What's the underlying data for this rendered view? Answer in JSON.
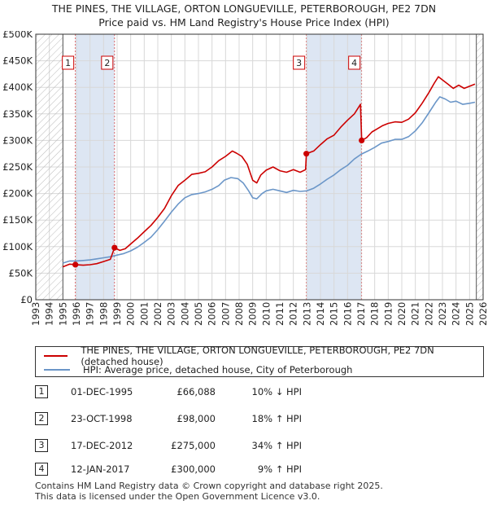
{
  "title": {
    "line1": "THE PINES, THE VILLAGE, ORTON LONGUEVILLE, PETERBOROUGH, PE2 7DN",
    "line2": "Price paid vs. HM Land Registry's House Price Index (HPI)"
  },
  "colors": {
    "property": "#cc0000",
    "hpi": "#6b96c8",
    "grid": "#d8d8d8",
    "band": "#dde6f3",
    "hatch": "#bbbbbb"
  },
  "legend": {
    "property": "THE PINES, THE VILLAGE, ORTON LONGUEVILLE, PETERBOROUGH, PE2 7DN (detached house)",
    "hpi": "HPI: Average price, detached house, City of Peterborough"
  },
  "chart_data": {
    "type": "line",
    "title": "Price paid vs. HM Land Registry's House Price Index (HPI)",
    "xlabel": "",
    "ylabel": "",
    "xlim": [
      1993,
      2026
    ],
    "ylim": [
      0,
      500000
    ],
    "x_ticks": [
      "1993",
      "1994",
      "1995",
      "1996",
      "1997",
      "1998",
      "1999",
      "2000",
      "2001",
      "2002",
      "2003",
      "2004",
      "2005",
      "2006",
      "2007",
      "2008",
      "2009",
      "2010",
      "2011",
      "2012",
      "2013",
      "2014",
      "2015",
      "2016",
      "2017",
      "2018",
      "2019",
      "2020",
      "2021",
      "2022",
      "2023",
      "2024",
      "2025",
      "2026"
    ],
    "y_ticks": [
      {
        "value": 0,
        "label": "£0"
      },
      {
        "value": 50000,
        "label": "£50K"
      },
      {
        "value": 100000,
        "label": "£100K"
      },
      {
        "value": 150000,
        "label": "£150K"
      },
      {
        "value": 200000,
        "label": "£200K"
      },
      {
        "value": 250000,
        "label": "£250K"
      },
      {
        "value": 300000,
        "label": "£300K"
      },
      {
        "value": 350000,
        "label": "£350K"
      },
      {
        "value": 400000,
        "label": "£400K"
      },
      {
        "value": 450000,
        "label": "£450K"
      },
      {
        "value": 500000,
        "label": "£500K"
      }
    ],
    "hatched_before": 1995.0,
    "hatched_after": 2025.5,
    "shaded_bands": [
      [
        1995.92,
        1998.81
      ],
      [
        2012.96,
        2017.04
      ]
    ],
    "sales": [
      {
        "label": "1",
        "x": 1995.92,
        "y": 66088
      },
      {
        "label": "2",
        "x": 1998.81,
        "y": 98000
      },
      {
        "label": "3",
        "x": 2012.96,
        "y": 275000
      },
      {
        "label": "4",
        "x": 2017.04,
        "y": 300000
      }
    ],
    "series": [
      {
        "name": "THE PINES, THE VILLAGE, ORTON LONGUEVILLE, PETERBOROUGH, PE2 7DN (detached house)",
        "color": "#cc0000",
        "points": [
          [
            1995.0,
            62000
          ],
          [
            1995.5,
            67000
          ],
          [
            1995.92,
            66088
          ],
          [
            1996.5,
            65000
          ],
          [
            1997.0,
            66000
          ],
          [
            1997.5,
            68000
          ],
          [
            1998.0,
            72000
          ],
          [
            1998.5,
            76000
          ],
          [
            1998.81,
            98000
          ],
          [
            1999.2,
            93000
          ],
          [
            1999.6,
            96000
          ],
          [
            2000.0,
            105000
          ],
          [
            2000.5,
            116000
          ],
          [
            2001.0,
            128000
          ],
          [
            2001.5,
            140000
          ],
          [
            2002.0,
            155000
          ],
          [
            2002.5,
            172000
          ],
          [
            2003.0,
            196000
          ],
          [
            2003.5,
            215000
          ],
          [
            2004.0,
            225000
          ],
          [
            2004.5,
            236000
          ],
          [
            2005.0,
            238000
          ],
          [
            2005.5,
            241000
          ],
          [
            2006.0,
            250000
          ],
          [
            2006.5,
            262000
          ],
          [
            2007.0,
            270000
          ],
          [
            2007.5,
            280000
          ],
          [
            2007.8,
            276000
          ],
          [
            2008.2,
            270000
          ],
          [
            2008.6,
            255000
          ],
          [
            2009.0,
            225000
          ],
          [
            2009.3,
            220000
          ],
          [
            2009.6,
            235000
          ],
          [
            2010.0,
            244000
          ],
          [
            2010.5,
            250000
          ],
          [
            2011.0,
            243000
          ],
          [
            2011.5,
            240000
          ],
          [
            2012.0,
            245000
          ],
          [
            2012.5,
            240000
          ],
          [
            2012.9,
            245000
          ],
          [
            2012.96,
            275000
          ],
          [
            2013.5,
            280000
          ],
          [
            2014.0,
            292000
          ],
          [
            2014.5,
            303000
          ],
          [
            2015.0,
            310000
          ],
          [
            2015.5,
            325000
          ],
          [
            2016.0,
            338000
          ],
          [
            2016.5,
            350000
          ],
          [
            2016.95,
            368000
          ],
          [
            2017.04,
            300000
          ],
          [
            2017.4,
            305000
          ],
          [
            2017.8,
            316000
          ],
          [
            2018.2,
            322000
          ],
          [
            2018.6,
            328000
          ],
          [
            2019.0,
            332000
          ],
          [
            2019.5,
            335000
          ],
          [
            2020.0,
            334000
          ],
          [
            2020.5,
            340000
          ],
          [
            2021.0,
            352000
          ],
          [
            2021.5,
            370000
          ],
          [
            2022.0,
            390000
          ],
          [
            2022.4,
            408000
          ],
          [
            2022.7,
            420000
          ],
          [
            2023.0,
            414000
          ],
          [
            2023.4,
            406000
          ],
          [
            2023.8,
            398000
          ],
          [
            2024.2,
            404000
          ],
          [
            2024.6,
            398000
          ],
          [
            2025.0,
            402000
          ],
          [
            2025.4,
            406000
          ]
        ]
      },
      {
        "name": "HPI: Average price, detached house, City of Peterborough",
        "color": "#6b96c8",
        "points": [
          [
            1995.0,
            69000
          ],
          [
            1995.5,
            73000
          ],
          [
            1996.0,
            73000
          ],
          [
            1996.5,
            74000
          ],
          [
            1997.0,
            75000
          ],
          [
            1997.5,
            77000
          ],
          [
            1998.0,
            79000
          ],
          [
            1998.5,
            81000
          ],
          [
            1999.0,
            84000
          ],
          [
            1999.5,
            87000
          ],
          [
            2000.0,
            92000
          ],
          [
            2000.5,
            99000
          ],
          [
            2001.0,
            108000
          ],
          [
            2001.5,
            118000
          ],
          [
            2002.0,
            132000
          ],
          [
            2002.5,
            148000
          ],
          [
            2003.0,
            165000
          ],
          [
            2003.5,
            180000
          ],
          [
            2004.0,
            192000
          ],
          [
            2004.5,
            198000
          ],
          [
            2005.0,
            200000
          ],
          [
            2005.5,
            203000
          ],
          [
            2006.0,
            208000
          ],
          [
            2006.5,
            215000
          ],
          [
            2006.9,
            225000
          ],
          [
            2007.4,
            230000
          ],
          [
            2007.9,
            228000
          ],
          [
            2008.3,
            220000
          ],
          [
            2008.7,
            205000
          ],
          [
            2009.0,
            192000
          ],
          [
            2009.3,
            190000
          ],
          [
            2009.7,
            200000
          ],
          [
            2010.0,
            205000
          ],
          [
            2010.5,
            208000
          ],
          [
            2011.0,
            205000
          ],
          [
            2011.5,
            202000
          ],
          [
            2012.0,
            206000
          ],
          [
            2012.5,
            204000
          ],
          [
            2013.0,
            205000
          ],
          [
            2013.5,
            210000
          ],
          [
            2014.0,
            218000
          ],
          [
            2014.5,
            227000
          ],
          [
            2015.0,
            235000
          ],
          [
            2015.5,
            245000
          ],
          [
            2016.0,
            253000
          ],
          [
            2016.5,
            265000
          ],
          [
            2017.0,
            274000
          ],
          [
            2017.5,
            280000
          ],
          [
            2018.0,
            287000
          ],
          [
            2018.5,
            295000
          ],
          [
            2019.0,
            298000
          ],
          [
            2019.5,
            302000
          ],
          [
            2020.0,
            302000
          ],
          [
            2020.5,
            307000
          ],
          [
            2021.0,
            318000
          ],
          [
            2021.5,
            333000
          ],
          [
            2022.0,
            352000
          ],
          [
            2022.5,
            372000
          ],
          [
            2022.8,
            382000
          ],
          [
            2023.2,
            378000
          ],
          [
            2023.6,
            372000
          ],
          [
            2024.0,
            374000
          ],
          [
            2024.5,
            368000
          ],
          [
            2025.0,
            370000
          ],
          [
            2025.4,
            372000
          ]
        ]
      }
    ]
  },
  "sales": [
    {
      "num": "1",
      "date": "01-DEC-1995",
      "price": "£66,088",
      "hpi": "10% ↓ HPI"
    },
    {
      "num": "2",
      "date": "23-OCT-1998",
      "price": "£98,000",
      "hpi": "18% ↑ HPI"
    },
    {
      "num": "3",
      "date": "17-DEC-2012",
      "price": "£275,000",
      "hpi": "34% ↑ HPI"
    },
    {
      "num": "4",
      "date": "12-JAN-2017",
      "price": "£300,000",
      "hpi": "9% ↑ HPI"
    }
  ],
  "footer": {
    "line1": "Contains HM Land Registry data © Crown copyright and database right 2025.",
    "line2": "This data is licensed under the Open Government Licence v3.0."
  }
}
